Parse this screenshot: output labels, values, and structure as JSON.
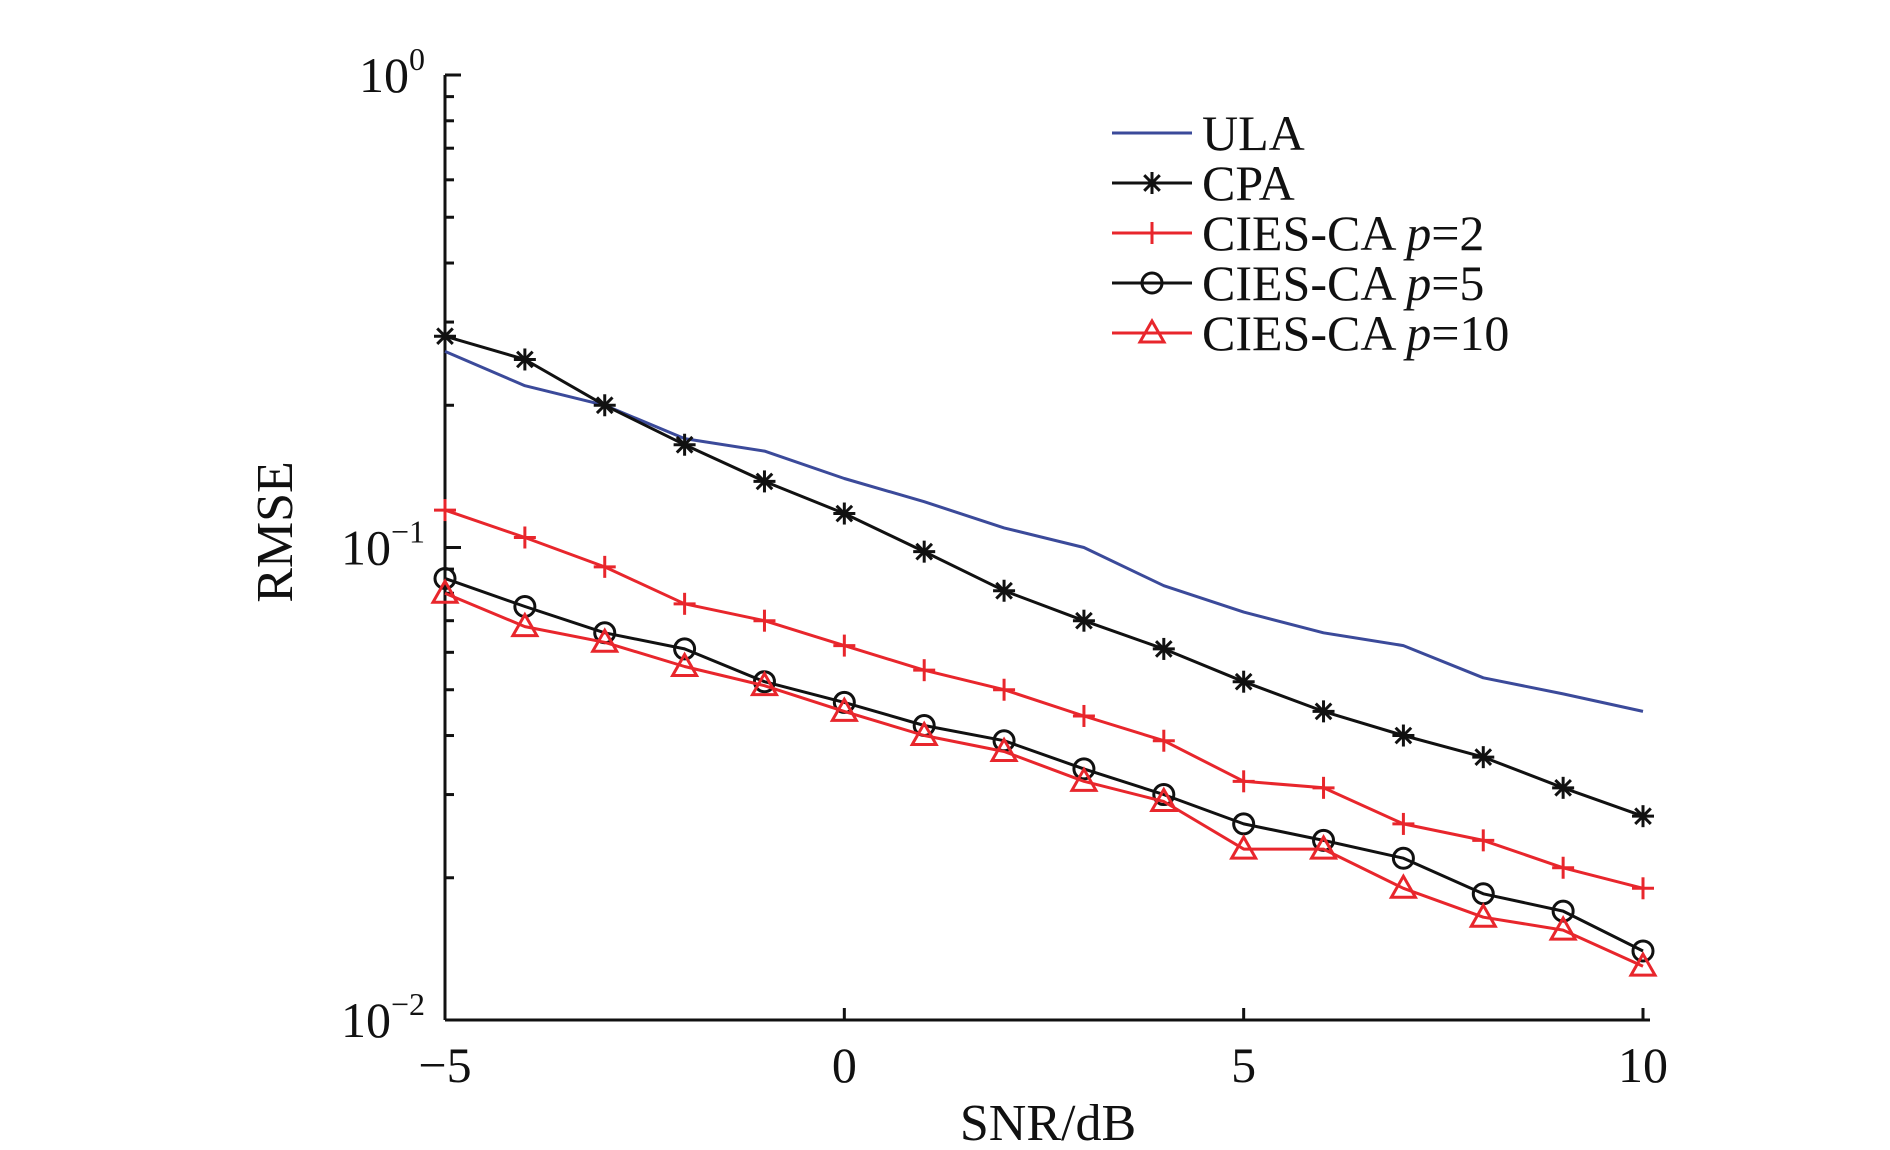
{
  "chart_data": {
    "type": "line",
    "title": "",
    "xlabel": "SNR/dB",
    "ylabel": "RMSE",
    "yscale": "log",
    "xlim": [
      -5,
      10
    ],
    "ylim": [
      0.01,
      1
    ],
    "grid": false,
    "legend_position": "top-right",
    "x": [
      -5,
      -4,
      -3,
      -2,
      -1,
      0,
      1,
      2,
      3,
      4,
      5,
      6,
      7,
      8,
      9,
      10
    ],
    "xticks": [
      -5,
      0,
      5,
      10
    ],
    "xtick_labels": [
      "−5",
      "0",
      "5",
      "10"
    ],
    "yticks": [
      {
        "base": "10",
        "exp": "0"
      },
      {
        "base": "10",
        "exp": "−1"
      },
      {
        "base": "10",
        "exp": "−2"
      }
    ],
    "series": [
      {
        "name": "ULA",
        "label_main": "ULA",
        "label_italic": "",
        "label_tail": "",
        "color": "#3b4a9a",
        "marker": "none",
        "values": [
          0.26,
          0.22,
          0.2,
          0.17,
          0.16,
          0.14,
          0.125,
          0.11,
          0.1,
          0.083,
          0.073,
          0.066,
          0.062,
          0.053,
          0.049,
          0.045
        ]
      },
      {
        "name": "CPA",
        "label_main": "CPA",
        "label_italic": "",
        "label_tail": "",
        "color": "#111111",
        "marker": "asterisk",
        "values": [
          0.28,
          0.25,
          0.2,
          0.165,
          0.138,
          0.118,
          0.098,
          0.081,
          0.07,
          0.061,
          0.052,
          0.045,
          0.04,
          0.036,
          0.031,
          0.027
        ]
      },
      {
        "name": "CIES-CA p=2",
        "label_main": "CIES-CA ",
        "label_italic": "p",
        "label_tail": "=2",
        "color": "#e8262c",
        "marker": "plus",
        "values": [
          0.12,
          0.105,
          0.091,
          0.076,
          0.07,
          0.062,
          0.055,
          0.05,
          0.044,
          0.039,
          0.032,
          0.031,
          0.026,
          0.024,
          0.021,
          0.019
        ]
      },
      {
        "name": "CIES-CA p=5",
        "label_main": "CIES-CA ",
        "label_italic": "p",
        "label_tail": "=5",
        "color": "#111111",
        "marker": "circle",
        "values": [
          0.086,
          0.075,
          0.066,
          0.061,
          0.052,
          0.047,
          0.042,
          0.039,
          0.034,
          0.03,
          0.026,
          0.024,
          0.022,
          0.0185,
          0.017,
          0.014
        ]
      },
      {
        "name": "CIES-CA p=10",
        "label_main": "CIES-CA ",
        "label_italic": "p",
        "label_tail": "=10",
        "color": "#e8262c",
        "marker": "triangle",
        "values": [
          0.08,
          0.068,
          0.063,
          0.056,
          0.051,
          0.045,
          0.04,
          0.037,
          0.032,
          0.029,
          0.023,
          0.023,
          0.019,
          0.0165,
          0.0155,
          0.013
        ]
      }
    ]
  }
}
